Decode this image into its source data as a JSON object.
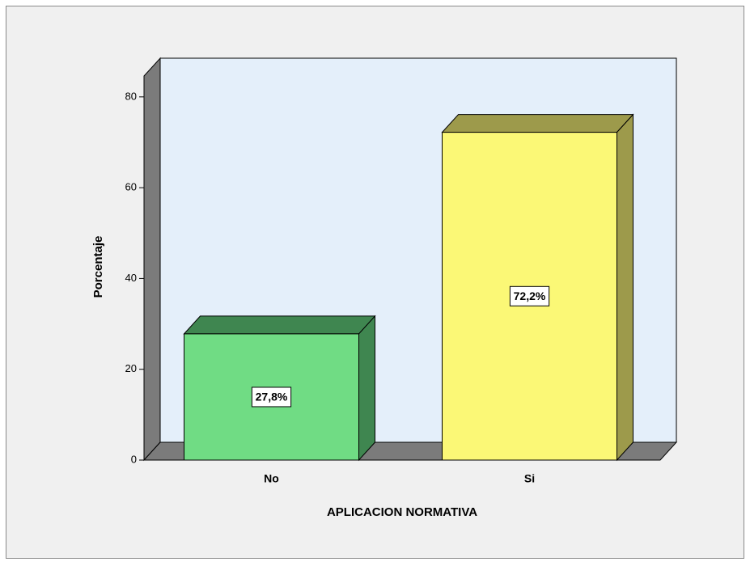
{
  "chart_data": {
    "type": "bar3d",
    "x_label": "APLICACION NORMATIVA",
    "y_label": "Porcentaje",
    "categories": [
      "No",
      "Si"
    ],
    "values": [
      27.8,
      72.2
    ],
    "value_labels": [
      "27,8%",
      "72,2%"
    ],
    "colors": [
      "#70dc84",
      "#fbf876"
    ],
    "side_colors": [
      "#3f8650",
      "#9d9a4b"
    ],
    "ylim": [
      0,
      84.6
    ],
    "yticks": [
      0,
      20,
      40,
      60,
      80
    ]
  }
}
